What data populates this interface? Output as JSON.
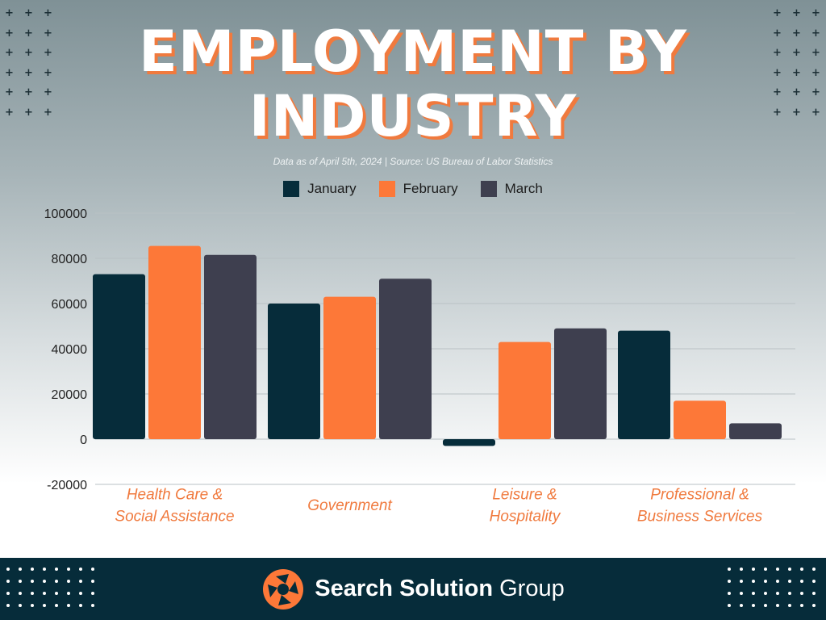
{
  "header": {
    "title_line1": "EMPLOYMENT BY",
    "title_line2": "INDUSTRY",
    "subtitle": "Data as of April 5th, 2024 | Source: US Bureau of Labor Statistics",
    "title_color": "#ffffff",
    "title_shadow_color": "#f07a3e"
  },
  "legend": [
    {
      "label": "January",
      "color": "#062c3a"
    },
    {
      "label": "February",
      "color": "#fd7838"
    },
    {
      "label": "March",
      "color": "#3e3f4f"
    }
  ],
  "chart_data": {
    "type": "bar",
    "title": "EMPLOYMENT BY INDUSTRY",
    "categories": [
      [
        "Health Care &",
        "Social Assistance"
      ],
      [
        "Government"
      ],
      [
        "Leisure &",
        "Hospitality"
      ],
      [
        "Professional &",
        "Business Services"
      ]
    ],
    "series": [
      {
        "name": "January",
        "color": "#062c3a",
        "values": [
          73000,
          60000,
          -3000,
          48000
        ]
      },
      {
        "name": "February",
        "color": "#fd7838",
        "values": [
          85500,
          63000,
          43000,
          17000
        ]
      },
      {
        "name": "March",
        "color": "#3e3f4f",
        "values": [
          81500,
          71000,
          49000,
          7000
        ]
      }
    ],
    "ylim": [
      -20000,
      100000
    ],
    "yticks": [
      100000,
      80000,
      60000,
      40000,
      20000,
      0,
      -20000
    ],
    "grid": true,
    "legend_position": "top-center",
    "category_label_color": "#f07a3e",
    "axis_text_color": "#222222",
    "grid_color": "#b9c1c4"
  },
  "footer": {
    "brand_bold": "Search Solution",
    "brand_regular": "Group",
    "logo_icon": "camera-aperture-icon",
    "background": "#062c3a",
    "logo_color": "#fd7838"
  }
}
